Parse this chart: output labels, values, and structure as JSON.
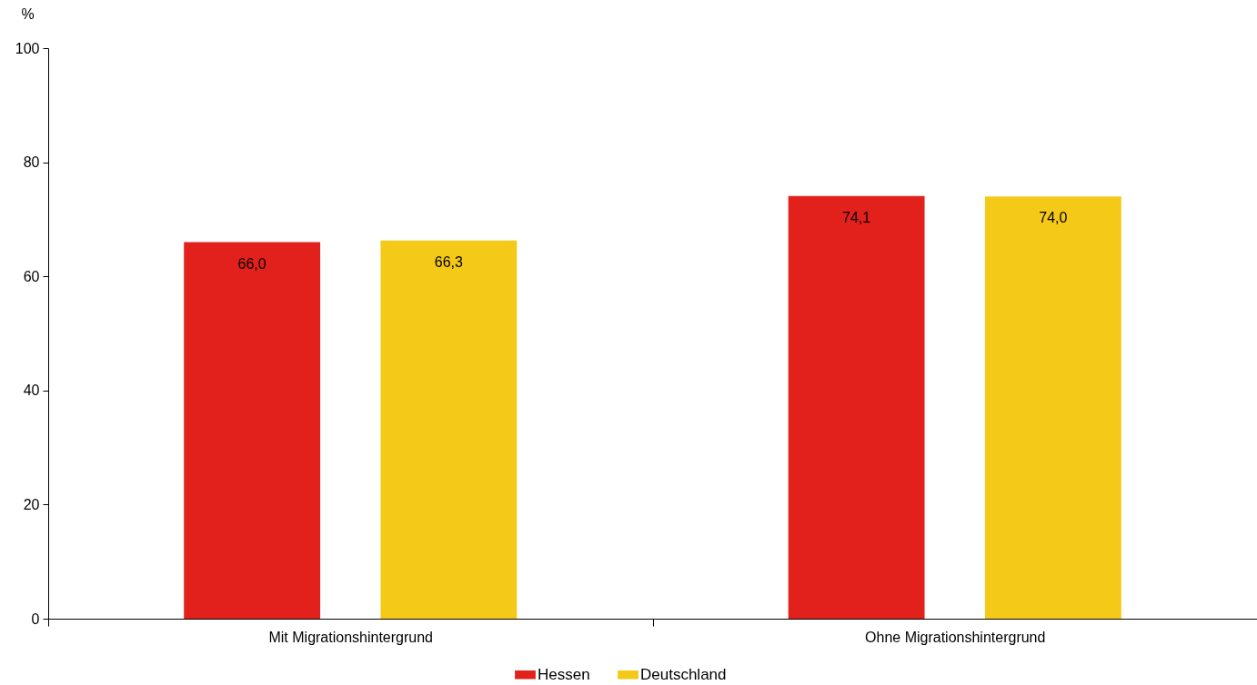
{
  "chart_data": {
    "type": "bar",
    "ylabel": "%",
    "categories": [
      "Mit Migrationshintergrund",
      "Ohne Migrationshintergrund"
    ],
    "series": [
      {
        "name": "Hessen",
        "color": "#e2211c",
        "values": [
          66.0,
          74.1
        ],
        "value_labels": [
          "66,0",
          "74,1"
        ]
      },
      {
        "name": "Deutschland",
        "color": "#f5c918",
        "values": [
          66.3,
          74.0
        ],
        "value_labels": [
          "66,3",
          "74,0"
        ]
      }
    ],
    "ylim": [
      0,
      100
    ],
    "yticks": [
      0,
      20,
      40,
      60,
      80,
      100
    ],
    "legend": "bottom"
  }
}
